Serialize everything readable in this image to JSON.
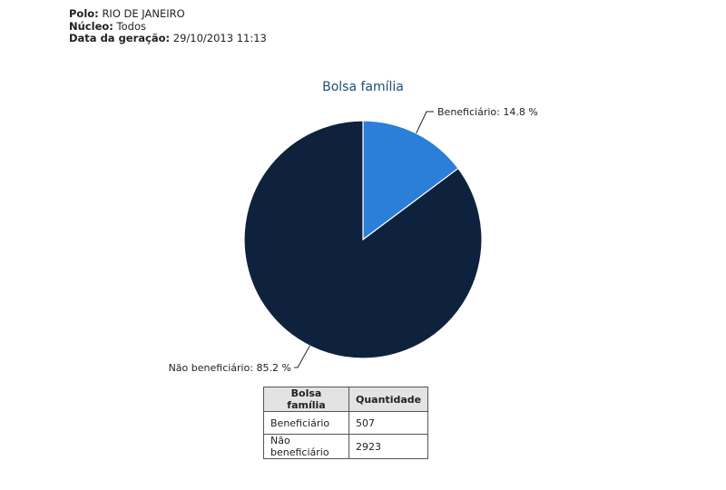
{
  "header": {
    "polo_label": "Polo:",
    "polo_value": "RIO DE JANEIRO",
    "nucleo_label": "Núcleo:",
    "nucleo_value": "Todos",
    "data_label": "Data da geração:",
    "data_value": "29/10/2013 11:13"
  },
  "chart_data": {
    "type": "pie",
    "title": "Bolsa família",
    "slices": [
      {
        "name": "Beneficiário",
        "value": 507,
        "percent": 14.8,
        "label": "Beneficiário: 14.8 %",
        "color": "#2b7fd9"
      },
      {
        "name": "Não beneficiário",
        "value": 2923,
        "percent": 85.2,
        "label": "Não beneficiário: 85.2 %",
        "color": "#0e223d"
      }
    ]
  },
  "table": {
    "headers": [
      "Bolsa família",
      "Quantidade"
    ],
    "rows": [
      [
        "Beneficiário",
        "507"
      ],
      [
        "Não beneficiário",
        "2923"
      ]
    ]
  }
}
